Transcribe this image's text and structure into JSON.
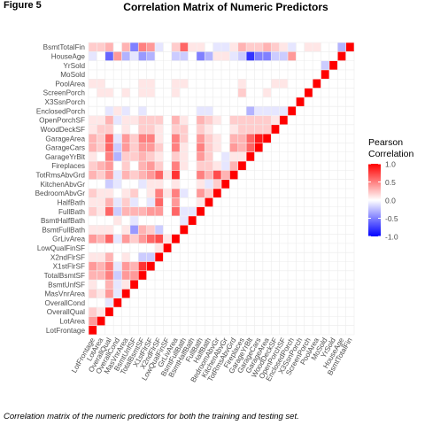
{
  "figure_label": "Figure 5",
  "caption": "Correlation matrix of the numeric predictors for both the training and testing set.",
  "chart_data": {
    "type": "heatmap",
    "title": "Correlation Matrix of Numeric Predictors",
    "variables": [
      "LotFrontage",
      "LotArea",
      "OverallQual",
      "OverallCond",
      "MasVnrArea",
      "BsmtUnfSF",
      "TotalBsmtSF",
      "X1stFlrSF",
      "X2ndFlrSF",
      "LowQualFinSF",
      "GrLivArea",
      "BsmtFullBath",
      "BsmtHalfBath",
      "FullBath",
      "HalfBath",
      "BedroomAbvGr",
      "KitchenAbvGr",
      "TotRmsAbvGrd",
      "Fireplaces",
      "GarageYrBlt",
      "GarageCars",
      "GarageArea",
      "WoodDeckSF",
      "OpenPorchSF",
      "EnclosedPorch",
      "X3SsnPorch",
      "ScreenPorch",
      "PoolArea",
      "MoSold",
      "YrSold",
      "HouseAge",
      "BsmtTotalFin"
    ],
    "correlations": [
      [
        1
      ],
      [
        0.4,
        1
      ],
      [
        0.2,
        0.1,
        1
      ],
      [
        0,
        0,
        -0.1,
        1
      ],
      [
        0.2,
        0.1,
        0.4,
        -0.1,
        1
      ],
      [
        0.1,
        0,
        0.3,
        -0.1,
        0.1,
        1
      ],
      [
        0.3,
        0.3,
        0.5,
        -0.2,
        0.4,
        0.4,
        1
      ],
      [
        0.4,
        0.3,
        0.5,
        -0.1,
        0.4,
        0.3,
        0.8,
        1
      ],
      [
        0.1,
        0.1,
        0.3,
        0,
        0.1,
        0,
        -0.2,
        -0.2,
        1
      ],
      [
        0,
        0,
        0,
        0,
        0,
        0,
        0,
        0,
        0.1,
        1
      ],
      [
        0.4,
        0.3,
        0.6,
        -0.1,
        0.4,
        0.2,
        0.4,
        0.6,
        0.7,
        0.1,
        1
      ],
      [
        0.1,
        0.1,
        0.1,
        0,
        0.1,
        -0.4,
        0.3,
        0.2,
        -0.2,
        0,
        0,
        1
      ],
      [
        0,
        0,
        0,
        0.1,
        0,
        -0.1,
        0,
        0,
        0,
        0,
        0,
        -0.1,
        1
      ],
      [
        0.2,
        0.1,
        0.6,
        -0.2,
        0.3,
        0.3,
        0.3,
        0.4,
        0.4,
        0,
        0.6,
        -0.1,
        -0.1,
        1
      ],
      [
        0.1,
        0.1,
        0.3,
        -0.1,
        0.2,
        -0.1,
        0,
        -0.1,
        0.6,
        0,
        0.4,
        0,
        0,
        0.1,
        1
      ],
      [
        0.2,
        0.1,
        0.1,
        0,
        0.1,
        0.2,
        0,
        0.1,
        0.5,
        0.1,
        0.5,
        -0.1,
        0,
        0.4,
        0.2,
        1
      ],
      [
        0,
        0,
        -0.2,
        -0.1,
        0,
        0,
        -0.1,
        0.1,
        0.1,
        0,
        0.1,
        0,
        0,
        0.1,
        -0.1,
        0.2,
        1
      ],
      [
        0.3,
        0.2,
        0.4,
        -0.1,
        0.3,
        0.2,
        0.3,
        0.4,
        0.6,
        0.1,
        0.8,
        0,
        0,
        0.5,
        0.3,
        0.7,
        0.3,
        1
      ],
      [
        0.2,
        0.3,
        0.4,
        0,
        0.2,
        0,
        0.3,
        0.4,
        0.2,
        0,
        0.5,
        0.1,
        0,
        0.2,
        0.2,
        0.1,
        -0.1,
        0.3,
        1
      ],
      [
        0.1,
        0,
        0.5,
        -0.3,
        0.2,
        0.2,
        0.3,
        0.2,
        0.1,
        0,
        0.2,
        0.1,
        0,
        0.4,
        0.2,
        0,
        -0.1,
        0.1,
        0.1,
        1
      ],
      [
        0.3,
        0.2,
        0.6,
        -0.2,
        0.4,
        0.2,
        0.4,
        0.4,
        0.2,
        0,
        0.5,
        0.1,
        0,
        0.5,
        0.2,
        0.1,
        0,
        0.4,
        0.3,
        0.6,
        1
      ],
      [
        0.3,
        0.2,
        0.6,
        -0.1,
        0.4,
        0.2,
        0.5,
        0.5,
        0.1,
        0,
        0.5,
        0.2,
        0,
        0.4,
        0.2,
        0.1,
        0,
        0.3,
        0.3,
        0.6,
        0.9,
        1
      ],
      [
        0.1,
        0.2,
        0.2,
        0,
        0.1,
        0,
        0.2,
        0.2,
        0.1,
        0,
        0.2,
        0.2,
        0,
        0.2,
        0.1,
        0,
        0,
        0.1,
        0.2,
        0.2,
        0.2,
        0.2,
        1
      ],
      [
        0.1,
        0.1,
        0.3,
        -0.1,
        0.1,
        0.1,
        0.2,
        0.2,
        0.2,
        0,
        0.3,
        0.1,
        0,
        0.3,
        0.2,
        0.1,
        0,
        0.2,
        0.2,
        0.2,
        0.2,
        0.2,
        0.1,
        1
      ],
      [
        0,
        0,
        -0.1,
        0.1,
        -0.1,
        0,
        -0.1,
        0,
        0,
        0,
        0,
        0,
        0,
        -0.1,
        -0.1,
        0,
        0,
        0,
        0,
        -0.3,
        -0.1,
        -0.1,
        -0.1,
        -0.1,
        1
      ],
      [
        0,
        0,
        0,
        0,
        0,
        0,
        0,
        0,
        0,
        0,
        0,
        0,
        0,
        0,
        0,
        0,
        0,
        0,
        0,
        0,
        0,
        0,
        0,
        0,
        0,
        1
      ],
      [
        0,
        0.1,
        0.1,
        0,
        0.1,
        0,
        0.1,
        0.1,
        0,
        0,
        0.1,
        0,
        0,
        0,
        0,
        0,
        0,
        0,
        0.2,
        0,
        0,
        0.1,
        0,
        0,
        0,
        0,
        1
      ],
      [
        0.1,
        0.1,
        0,
        0,
        0,
        0,
        0.1,
        0.1,
        0,
        0,
        0.1,
        0.1,
        0,
        0,
        0,
        0,
        0,
        0,
        0.1,
        0,
        0,
        0,
        0.1,
        0.1,
        0,
        0,
        0,
        1
      ],
      [
        0,
        0,
        0,
        0,
        0,
        0,
        0,
        0,
        0,
        0,
        0,
        0,
        0,
        0,
        0,
        0,
        0,
        0,
        0,
        0,
        0,
        0,
        0,
        0,
        0,
        0,
        0,
        0,
        1
      ],
      [
        0,
        0,
        0,
        0,
        0,
        0,
        0,
        0,
        0,
        0,
        0,
        0,
        0,
        0,
        0,
        0,
        0,
        0,
        0,
        0,
        0,
        0,
        0,
        0,
        0,
        0,
        0,
        0,
        -0.2,
        1
      ],
      [
        -0.1,
        0,
        -0.6,
        0.4,
        -0.3,
        -0.1,
        -0.4,
        -0.3,
        0,
        0,
        -0.2,
        -0.2,
        0,
        -0.5,
        -0.3,
        0.1,
        0.1,
        -0.1,
        -0.2,
        -0.8,
        -0.5,
        -0.5,
        -0.2,
        -0.2,
        0.4,
        0,
        0,
        0,
        0,
        0,
        1
      ],
      [
        0.2,
        0.2,
        0.3,
        0,
        0.3,
        -0.5,
        0.5,
        0.4,
        -0.1,
        0,
        0.2,
        0.6,
        0.1,
        0.1,
        0,
        -0.1,
        -0.1,
        0.1,
        0.3,
        0.2,
        0.2,
        0.3,
        0.2,
        0.1,
        -0.1,
        0,
        0.1,
        0.1,
        0,
        0,
        -0.3,
        1
      ]
    ],
    "legend": {
      "title": "Pearson Correlation",
      "ticks": [
        1.0,
        0.5,
        0.0,
        -0.5,
        -1.0
      ],
      "tick_labels": [
        "1.0",
        "0.5",
        "0.0",
        "-0.5",
        "-1.0"
      ],
      "position": "right"
    },
    "colors": {
      "high": "#ff0000",
      "mid": "#ffffff",
      "low": "#0000ff",
      "grid": "#ebebeb"
    },
    "color_range": [
      -1,
      1
    ],
    "grid": true,
    "layout": "lower-triangle"
  }
}
